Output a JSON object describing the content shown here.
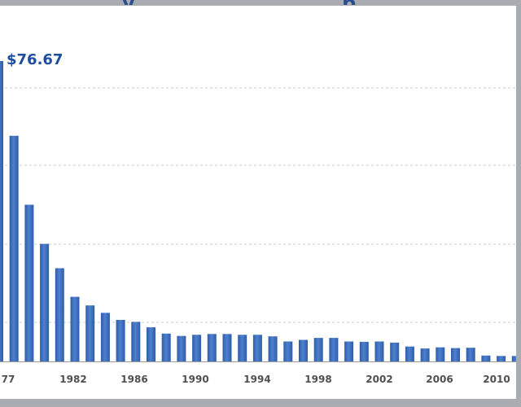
{
  "chart_data": {
    "type": "bar",
    "title": "",
    "xlabel": "",
    "ylabel": "",
    "x": [
      1977,
      1978,
      1979,
      1980,
      1981,
      1982,
      1983,
      1984,
      1985,
      1986,
      1987,
      1988,
      1989,
      1990,
      1991,
      1992,
      1993,
      1994,
      1995,
      1996,
      1997,
      1998,
      1999,
      2000,
      2001,
      2002,
      2003,
      2004,
      2005,
      2006,
      2007,
      2008,
      2009,
      2010,
      2011
    ],
    "values": [
      76.67,
      57.6,
      40.0,
      30.0,
      23.8,
      16.5,
      14.3,
      12.4,
      10.6,
      10.1,
      8.7,
      7.1,
      6.5,
      6.8,
      7.0,
      7.0,
      6.8,
      6.8,
      6.4,
      5.1,
      5.5,
      6.0,
      6.0,
      5.1,
      5.0,
      5.1,
      4.8,
      3.8,
      3.3,
      3.6,
      3.4,
      3.5,
      1.5,
      1.4,
      1.4
    ],
    "tick_labels": [
      "77",
      "1982",
      "1986",
      "1990",
      "1994",
      "1998",
      "2002",
      "2006",
      "2010"
    ],
    "callout": "$76.67",
    "ylim": [
      0,
      80
    ],
    "grid": true,
    "bar_color": "#3f6fbd"
  }
}
